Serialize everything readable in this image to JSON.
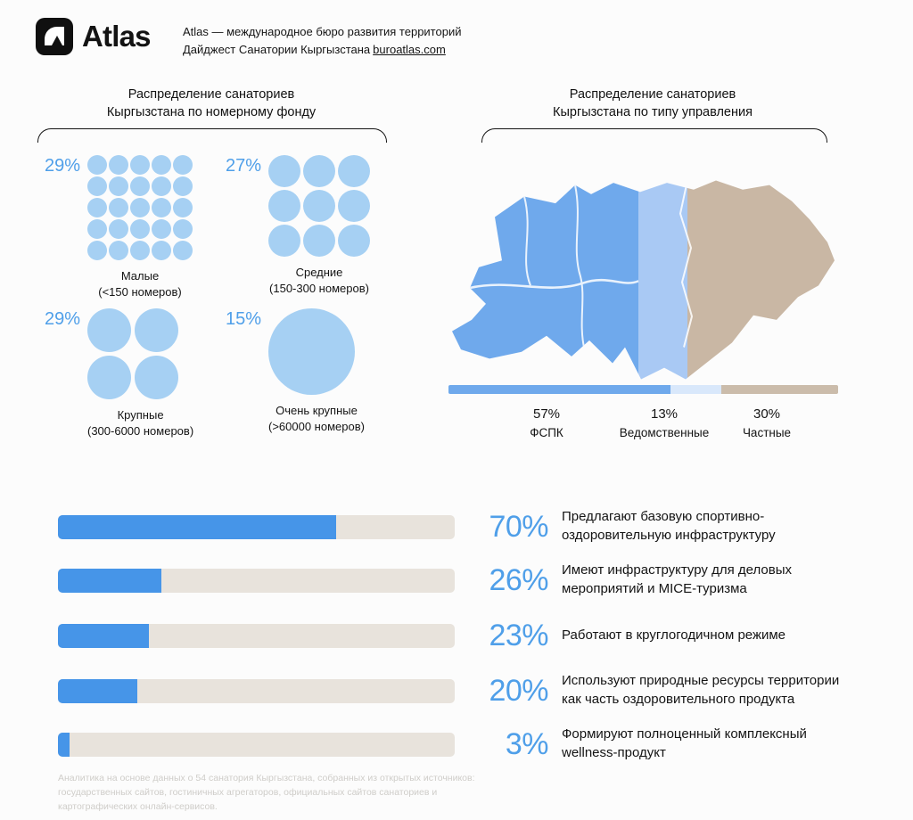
{
  "page": {
    "background": "#fcfcfc",
    "accent_blue": "#4f9fe9",
    "circle_blue": "#a6d0f3",
    "bar_blue": "#4695e8",
    "bar_track": "#e8e3dc"
  },
  "header": {
    "logo": "Atlas",
    "line1": "Atlas — международное бюро развития территорий",
    "line2": "Дайджест Санатории Кыргызстана",
    "link": "buroatlas.com"
  },
  "rooms": {
    "title1": "Распределение санаториев",
    "title2": "Кыргызстана по номерному фонду",
    "groups": [
      {
        "pct": "29%",
        "value": 29,
        "grid": 5,
        "name": "Малые",
        "range": "(<150 номеров)"
      },
      {
        "pct": "27%",
        "value": 27,
        "grid": 3,
        "name": "Средние",
        "range": "(150-300 номеров)"
      },
      {
        "pct": "29%",
        "value": 29,
        "grid": 2,
        "name": "Крупные",
        "range": "(300-6000 номеров)"
      },
      {
        "pct": "15%",
        "value": 15,
        "grid": 1,
        "name": "Очень крупные",
        "range": "(>60000 номеров)"
      }
    ]
  },
  "management": {
    "title1": "Распределение санаториев",
    "title2": "Кыргызстана по типу управления",
    "segments": [
      {
        "pct": "57%",
        "value": 57,
        "label": "ФСПК",
        "color": "#6fa9ec"
      },
      {
        "pct": "13%",
        "value": 13,
        "label": "Ведомственные",
        "color": "#d9e8fb"
      },
      {
        "pct": "30%",
        "value": 30,
        "label": "Частные",
        "color": "#cbbcab"
      }
    ]
  },
  "features": {
    "bars": [
      {
        "pct": "70%",
        "value": 70,
        "desc": "Предлагают базовую спортивно-оздоровительную инфраструктуру"
      },
      {
        "pct": "26%",
        "value": 26,
        "desc": "Имеют инфраструктуру для деловых мероприятий и MICE-туризма"
      },
      {
        "pct": "23%",
        "value": 23,
        "desc": "Работают в круглогодичном режиме"
      },
      {
        "pct": "20%",
        "value": 20,
        "desc": "Используют природные ресурсы территории как часть оздоровительного продукта"
      },
      {
        "pct": "3%",
        "value": 3,
        "desc": "Формируют полноценный комплексный wellness-продукт"
      }
    ]
  },
  "footer": "Аналитика на основе данных о 54 санатория Кыргызстана, собранных из открытых источников: государственных сайтов, гостиничных агрегаторов, официальных сайтов санаториев и картографических онлайн-сервисов.",
  "chart_data": [
    {
      "type": "pie",
      "title": "Распределение санаториев Кыргызстана по номерному фонду",
      "categories": [
        "Малые (<150 номеров)",
        "Средние (150-300 номеров)",
        "Крупные (300-6000 номеров)",
        "Очень крупные (>60000 номеров)"
      ],
      "values": [
        29,
        27,
        29,
        15
      ]
    },
    {
      "type": "pie",
      "title": "Распределение санаториев Кыргызстана по типу управления",
      "categories": [
        "ФСПК",
        "Ведомственные",
        "Частные"
      ],
      "values": [
        57,
        13,
        30
      ]
    },
    {
      "type": "bar",
      "title": "",
      "categories": [
        "Предлагают базовую спортивно-оздоровительную инфраструктуру",
        "Имеют инфраструктуру для деловых мероприятий и MICE-туризма",
        "Работают в круглогодичном режиме",
        "Используют природные ресурсы территории как часть оздоровительного продукта",
        "Формируют полноценный комплексный wellness-продукт"
      ],
      "values": [
        70,
        26,
        23,
        20,
        3
      ],
      "xlim": [
        0,
        100
      ]
    }
  ]
}
